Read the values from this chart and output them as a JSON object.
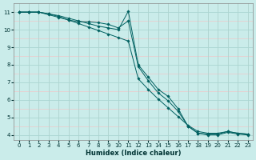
{
  "xlabel": "Humidex (Indice chaleur)",
  "xlim": [
    -0.5,
    23.5
  ],
  "ylim": [
    3.7,
    11.5
  ],
  "xticks": [
    0,
    1,
    2,
    3,
    4,
    5,
    6,
    7,
    8,
    9,
    10,
    11,
    12,
    13,
    14,
    15,
    16,
    17,
    18,
    19,
    20,
    21,
    22,
    23
  ],
  "yticks": [
    4,
    5,
    6,
    7,
    8,
    9,
    10,
    11
  ],
  "bg_color": "#caecea",
  "grid_color_major": "#aad6d2",
  "grid_color_minor": "#f0c8c8",
  "line_color": "#006060",
  "series": [
    {
      "x": [
        0,
        1,
        2,
        3,
        4,
        5,
        6,
        7,
        8,
        9,
        10,
        11,
        12,
        13,
        14,
        15,
        16,
        17,
        18,
        19,
        20,
        21,
        22,
        23
      ],
      "y": [
        11,
        11,
        11,
        10.9,
        10.8,
        10.65,
        10.5,
        10.35,
        10.2,
        10.1,
        10.0,
        11.05,
        8.0,
        7.3,
        6.6,
        6.2,
        5.5,
        4.5,
        4.1,
        4.0,
        4.0,
        4.15,
        4.05,
        4.0
      ]
    },
    {
      "x": [
        0,
        1,
        2,
        3,
        4,
        5,
        6,
        7,
        8,
        9,
        10,
        11,
        12,
        13,
        14,
        15,
        16,
        17,
        18,
        19,
        20,
        21,
        22,
        23
      ],
      "y": [
        11,
        11,
        11,
        10.85,
        10.7,
        10.55,
        10.45,
        10.45,
        10.4,
        10.3,
        10.1,
        10.5,
        7.9,
        7.1,
        6.4,
        5.95,
        5.35,
        4.5,
        4.1,
        4.05,
        4.05,
        4.2,
        4.1,
        4.05
      ]
    },
    {
      "x": [
        0,
        1,
        2,
        3,
        4,
        5,
        6,
        7,
        8,
        9,
        10,
        11,
        12,
        13,
        14,
        15,
        16,
        17,
        18,
        19,
        20,
        21,
        22,
        23
      ],
      "y": [
        11,
        11,
        11,
        10.9,
        10.75,
        10.55,
        10.35,
        10.15,
        9.95,
        9.75,
        9.55,
        9.35,
        7.2,
        6.6,
        6.05,
        5.55,
        5.05,
        4.55,
        4.2,
        4.1,
        4.1,
        4.2,
        4.1,
        4.05
      ]
    }
  ]
}
